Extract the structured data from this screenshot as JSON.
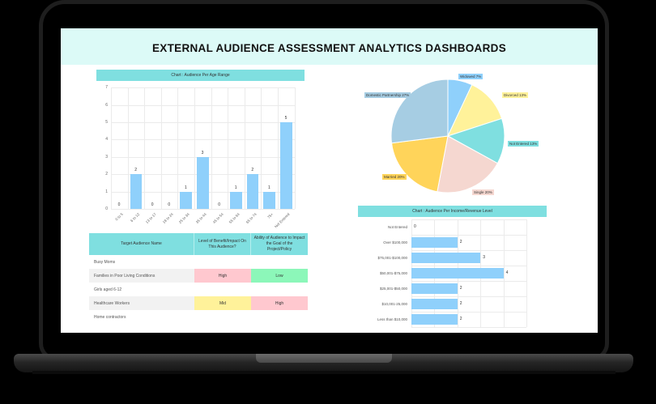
{
  "page": {
    "title": "EXTERNAL AUDIENCE ASSESSMENT ANALYTICS DASHBOARDS"
  },
  "colors": {
    "header_bg": "#dcfaf7",
    "title_bar": "#7fdfe0",
    "bar": "#8fd0fb",
    "high": "#ffc8cf",
    "low": "#8cf7b9",
    "mid": "#fff29a",
    "pie": {
      "Widowed": "#8fd0fb",
      "Divorced": "#fff29a",
      "Not Entered": "#7fdfe0",
      "Single": "#f5d7d0",
      "Married": "#ffd45a",
      "Domestic Partnership": "#a6cde3"
    }
  },
  "age_chart": {
    "title": "Chart : Audience Per Age Range"
  },
  "marital_chart": {
    "labels": [
      "Widowed 7%",
      "Divorced 13%",
      "Not Entered 13%",
      "Single 20%",
      "Married 20%",
      "Domestic Partnership 27%"
    ]
  },
  "income_chart": {
    "title": "Chart : Audience Per Income/Revenue Level"
  },
  "table": {
    "headers": [
      "Target Audience Name",
      "Level of Benefit/Impact On This Audience?",
      "Ability of Audience to Impact the Goal of the Project/Policy"
    ],
    "rows": [
      {
        "name": "Busy Moms",
        "benefit": "",
        "ability": ""
      },
      {
        "name": "Families in Poor Living Conditions",
        "benefit": "High",
        "ability": "Low"
      },
      {
        "name": "Girls aged 6-12",
        "benefit": "",
        "ability": ""
      },
      {
        "name": "Healthcare Workers",
        "benefit": "Mid",
        "ability": "High"
      },
      {
        "name": "Home contractors",
        "benefit": "",
        "ability": ""
      }
    ]
  },
  "chart_data": [
    {
      "type": "bar",
      "title": "Chart : Audience Per Age Range",
      "categories": [
        "0 to 5",
        "6 to 12",
        "13 to 17",
        "18 to 24",
        "25 to 34",
        "35 to 44",
        "45 to 54",
        "55 to 64",
        "65 to 74",
        "75+",
        "Not Entered"
      ],
      "values": [
        0,
        2,
        0,
        0,
        1,
        3,
        0,
        1,
        2,
        1,
        5
      ],
      "xlabel": "",
      "ylabel": "",
      "ylim": [
        0,
        7
      ],
      "yticks": [
        0,
        1,
        2,
        3,
        4,
        5,
        6,
        7
      ],
      "grid": true
    },
    {
      "type": "pie",
      "title": "",
      "categories": [
        "Widowed",
        "Divorced",
        "Not Entered",
        "Single",
        "Married",
        "Domestic Partnership"
      ],
      "values": [
        7,
        13,
        13,
        20,
        20,
        27
      ],
      "unit": "%"
    },
    {
      "type": "bar",
      "orientation": "horizontal",
      "title": "Chart : Audience Per Income/Revenue Level",
      "categories": [
        "Not Entered",
        "Over $100,000",
        "$75,001-$100,000",
        "$50,001-$75,000",
        "$25,001-$50,000",
        "$10,001-25,000",
        "Less than $10,000"
      ],
      "values": [
        0,
        2,
        3,
        4,
        2,
        2,
        2
      ],
      "xlim": [
        0,
        5
      ],
      "grid": true
    }
  ]
}
